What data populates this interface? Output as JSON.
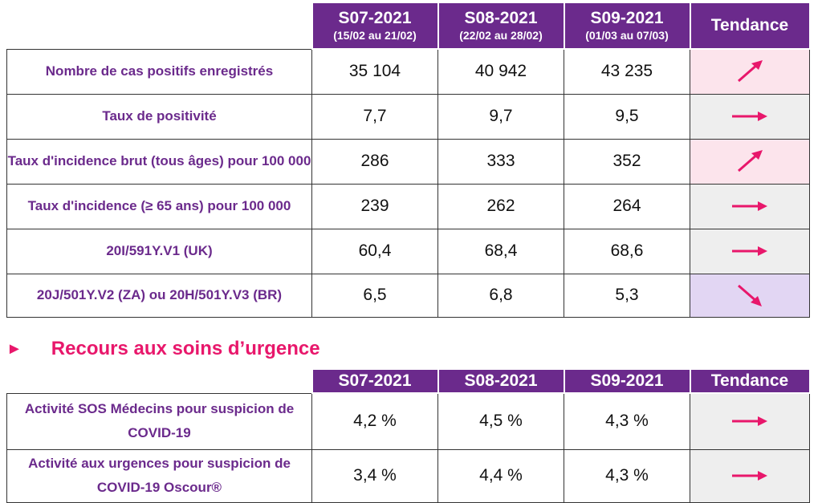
{
  "colors": {
    "header_bg": "#6b2a8c",
    "label_text": "#6b2a8c",
    "accent": "#e8176b",
    "up_bg": "#fce4ec",
    "flat_bg": "#eeeeee",
    "down_bg": "#e2d6f3"
  },
  "table1": {
    "headers": [
      {
        "week": "S07-2021",
        "range": "(15/02 au 21/02)"
      },
      {
        "week": "S08-2021",
        "range": "(22/02 au 28/02)"
      },
      {
        "week": "S09-2021",
        "range": "(01/03 au 07/03)"
      }
    ],
    "trend_header": "Tendance",
    "rows": [
      {
        "label": "Nombre de cas positifs enregistrés",
        "values": [
          "35 104",
          "40 942",
          "43 235"
        ],
        "trend": "up",
        "trend_icon": "arrow-up-right-icon"
      },
      {
        "label": "Taux de positivité",
        "values": [
          "7,7",
          "9,7",
          "9,5"
        ],
        "trend": "flat",
        "trend_icon": "arrow-right-icon"
      },
      {
        "label": "Taux d'incidence brut (tous âges) pour 100 000",
        "values": [
          "286",
          "333",
          "352"
        ],
        "trend": "up",
        "trend_icon": "arrow-up-right-icon"
      },
      {
        "label": "Taux d'incidence (≥ 65 ans) pour 100 000",
        "values": [
          "239",
          "262",
          "264"
        ],
        "trend": "flat",
        "trend_icon": "arrow-right-icon"
      },
      {
        "label": "20I/591Y.V1 (UK)",
        "values": [
          "60,4",
          "68,4",
          "68,6"
        ],
        "trend": "flat",
        "trend_icon": "arrow-right-icon"
      },
      {
        "label": "20J/501Y.V2 (ZA) ou 20H/501Y.V3 (BR)",
        "values": [
          "6,5",
          "6,8",
          "5,3"
        ],
        "trend": "down",
        "trend_icon": "arrow-down-right-icon"
      }
    ]
  },
  "section": {
    "bullet": "►",
    "title": "Recours aux soins d’urgence"
  },
  "table2": {
    "headers": [
      "S07-2021",
      "S08-2021",
      "S09-2021"
    ],
    "trend_header": "Tendance",
    "rows": [
      {
        "label": "Activité SOS Médecins pour suspicion de COVID-19",
        "values": [
          "4,2 %",
          "4,5 %",
          "4,3 %"
        ],
        "trend": "flat",
        "trend_icon": "arrow-right-icon"
      },
      {
        "label": "Activité aux urgences pour suspicion de COVID-19 Oscour®",
        "values": [
          "3,4 %",
          "4,4 %",
          "4,3 %"
        ],
        "trend": "flat",
        "trend_icon": "arrow-right-icon"
      }
    ]
  }
}
